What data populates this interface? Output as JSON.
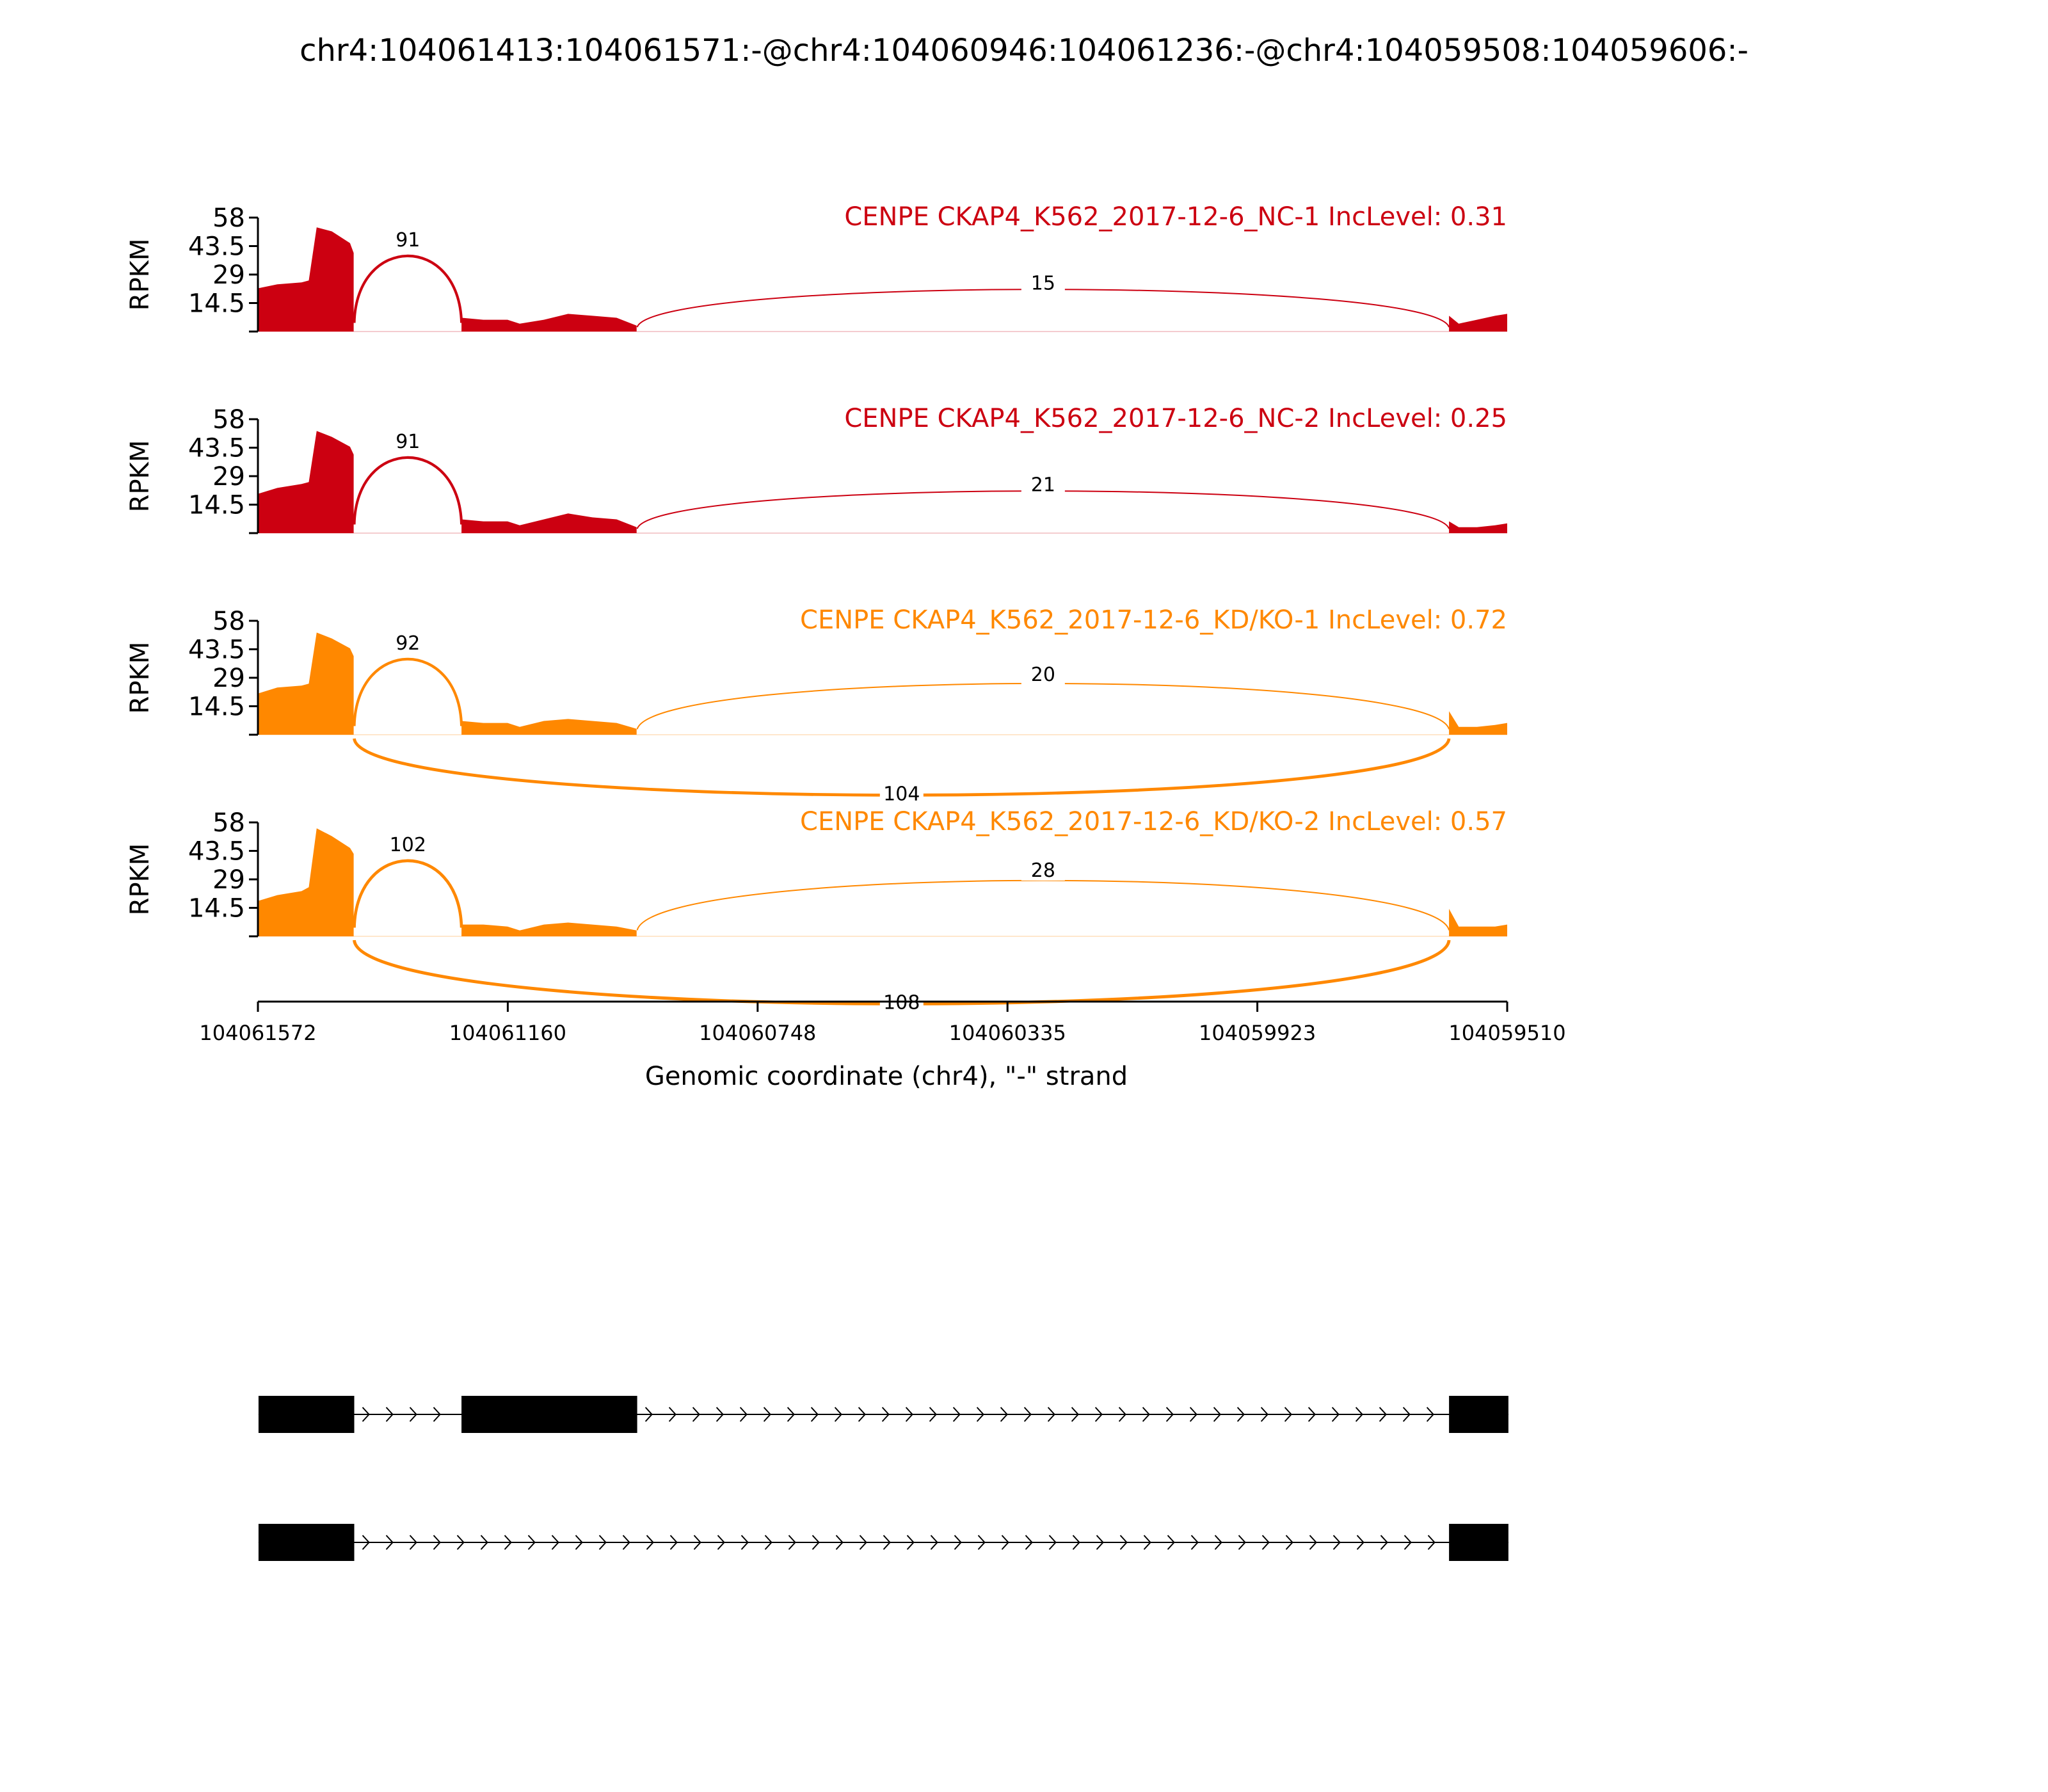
{
  "chart_data": {
    "type": "sashimi",
    "title": "chr4:104061413:104061571:-@chr4:104060946:104061236:-@chr4:104059508:104059606:-",
    "xlabel": "Genomic coordinate (chr4), \"-\" strand",
    "ylabel": "RPKM",
    "xlim": [
      104061572,
      104059510
    ],
    "x_ticks": [
      104061572,
      104061160,
      104060748,
      104060335,
      104059923,
      104059510
    ],
    "y_ticks": [
      14.5,
      29,
      43.5,
      58
    ],
    "ylim": [
      0,
      58
    ],
    "exons": [
      {
        "start": 104061571,
        "end": 104061413
      },
      {
        "start": 104061236,
        "end": 104060946
      },
      {
        "start": 104059606,
        "end": 104059508
      }
    ],
    "isoforms": [
      {
        "exons": [
          0,
          1,
          2
        ]
      },
      {
        "exons": [
          0,
          2
        ]
      }
    ],
    "series": [
      {
        "name": "CENPE CKAP4_K562_2017-12-6_NC-1 IncLevel: 0.31",
        "color": "#cc0011",
        "coverage": [
          [
            104061572,
            22
          ],
          [
            104061540,
            24
          ],
          [
            104061500,
            25
          ],
          [
            104061488,
            26
          ],
          [
            104061475,
            53
          ],
          [
            104061450,
            51
          ],
          [
            104061420,
            45
          ],
          [
            104061414,
            40
          ],
          [
            104061236,
            7
          ],
          [
            104061200,
            6
          ],
          [
            104061160,
            6
          ],
          [
            104061140,
            4
          ],
          [
            104061100,
            6
          ],
          [
            104061060,
            9
          ],
          [
            104061020,
            8
          ],
          [
            104060980,
            7
          ],
          [
            104060947,
            3
          ],
          [
            104059606,
            8
          ],
          [
            104059590,
            4
          ],
          [
            104059560,
            6
          ],
          [
            104059530,
            8
          ],
          [
            104059510,
            9
          ]
        ],
        "junctions": [
          {
            "from": 104061413,
            "to": 104061236,
            "count": "91",
            "side": "above",
            "height": 44
          },
          {
            "from": 104060946,
            "to": 104059606,
            "count": "15",
            "side": "above",
            "height": 22
          }
        ]
      },
      {
        "name": "CENPE CKAP4_K562_2017-12-6_NC-2 IncLevel: 0.25",
        "color": "#cc0011",
        "coverage": [
          [
            104061572,
            20
          ],
          [
            104061540,
            23
          ],
          [
            104061500,
            25
          ],
          [
            104061488,
            26
          ],
          [
            104061475,
            52
          ],
          [
            104061450,
            49
          ],
          [
            104061420,
            44
          ],
          [
            104061414,
            40
          ],
          [
            104061236,
            7
          ],
          [
            104061200,
            6
          ],
          [
            104061160,
            6
          ],
          [
            104061140,
            4
          ],
          [
            104061100,
            7
          ],
          [
            104061060,
            10
          ],
          [
            104061020,
            8
          ],
          [
            104060980,
            7
          ],
          [
            104060947,
            3
          ],
          [
            104059606,
            6
          ],
          [
            104059590,
            3
          ],
          [
            104059560,
            3
          ],
          [
            104059530,
            4
          ],
          [
            104059510,
            5
          ]
        ],
        "junctions": [
          {
            "from": 104061413,
            "to": 104061236,
            "count": "91",
            "side": "above",
            "height": 44
          },
          {
            "from": 104060946,
            "to": 104059606,
            "count": "21",
            "side": "above",
            "height": 22
          }
        ]
      },
      {
        "name": "CENPE CKAP4_K562_2017-12-6_KD/KO-1 IncLevel: 0.72",
        "color": "#ff8800",
        "coverage": [
          [
            104061572,
            21
          ],
          [
            104061540,
            24
          ],
          [
            104061500,
            25
          ],
          [
            104061488,
            26
          ],
          [
            104061475,
            52
          ],
          [
            104061450,
            49
          ],
          [
            104061420,
            44
          ],
          [
            104061414,
            40
          ],
          [
            104061236,
            7
          ],
          [
            104061200,
            6
          ],
          [
            104061160,
            6
          ],
          [
            104061140,
            4
          ],
          [
            104061100,
            7
          ],
          [
            104061060,
            8
          ],
          [
            104061020,
            7
          ],
          [
            104060980,
            6
          ],
          [
            104060947,
            3
          ],
          [
            104059606,
            12
          ],
          [
            104059590,
            4
          ],
          [
            104059560,
            4
          ],
          [
            104059530,
            5
          ],
          [
            104059510,
            6
          ]
        ],
        "junctions": [
          {
            "from": 104061413,
            "to": 104061236,
            "count": "92",
            "side": "above",
            "height": 44
          },
          {
            "from": 104060946,
            "to": 104059606,
            "count": "20",
            "side": "above",
            "height": 28
          },
          {
            "from": 104061413,
            "to": 104059606,
            "count": "104",
            "side": "below",
            "height": 16
          }
        ]
      },
      {
        "name": "CENPE CKAP4_K562_2017-12-6_KD/KO-2 IncLevel: 0.57",
        "color": "#ff8800",
        "coverage": [
          [
            104061572,
            18
          ],
          [
            104061540,
            21
          ],
          [
            104061500,
            23
          ],
          [
            104061488,
            25
          ],
          [
            104061475,
            55
          ],
          [
            104061450,
            51
          ],
          [
            104061420,
            45
          ],
          [
            104061414,
            42
          ],
          [
            104061236,
            6
          ],
          [
            104061200,
            6
          ],
          [
            104061160,
            5
          ],
          [
            104061140,
            3
          ],
          [
            104061100,
            6
          ],
          [
            104061060,
            7
          ],
          [
            104061020,
            6
          ],
          [
            104060980,
            5
          ],
          [
            104060947,
            3
          ],
          [
            104059606,
            14
          ],
          [
            104059590,
            5
          ],
          [
            104059560,
            5
          ],
          [
            104059530,
            5
          ],
          [
            104059510,
            6
          ]
        ],
        "junctions": [
          {
            "from": 104061413,
            "to": 104061236,
            "count": "102",
            "side": "above",
            "height": 44
          },
          {
            "from": 104060946,
            "to": 104059606,
            "count": "28",
            "side": "above",
            "height": 31
          },
          {
            "from": 104061413,
            "to": 104059606,
            "count": "108",
            "side": "below",
            "height": 18
          }
        ]
      }
    ]
  }
}
